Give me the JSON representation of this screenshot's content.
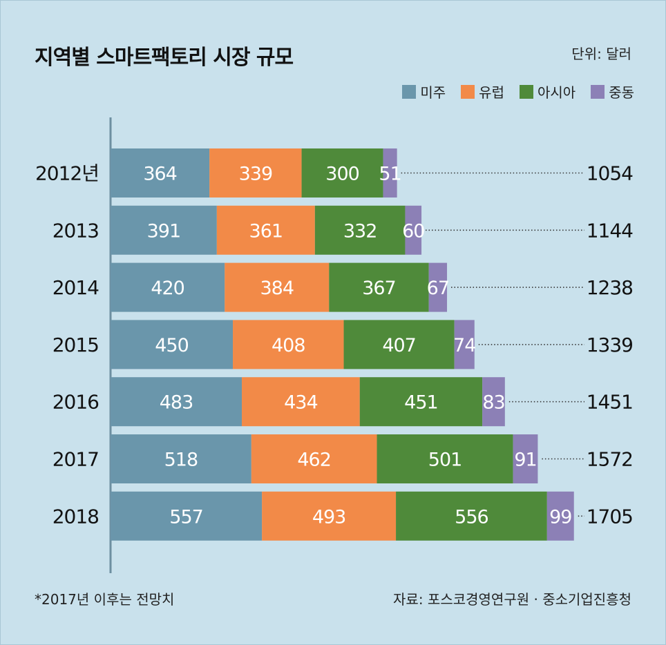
{
  "header": {
    "title": "지역별 스마트팩토리 시장 규모",
    "unit": "단위: 달러"
  },
  "footer": {
    "note": "*2017년 이후는 전망치",
    "source": "자료: 포스코경영연구원 · 중소기업진흥청"
  },
  "chart_data": {
    "type": "bar",
    "orientation": "horizontal",
    "stacked": true,
    "title": "지역별 스마트팩토리 시장 규모",
    "unit": "단위: 달러",
    "categories": [
      "2012년",
      "2013",
      "2014",
      "2015",
      "2016",
      "2017",
      "2018"
    ],
    "series": [
      {
        "name": "미주",
        "color": "#6a96ab",
        "values": [
          364,
          391,
          420,
          450,
          483,
          518,
          557
        ]
      },
      {
        "name": "유럽",
        "color": "#f28a48",
        "values": [
          339,
          361,
          384,
          408,
          434,
          462,
          493
        ]
      },
      {
        "name": "아시아",
        "color": "#4f8a3a",
        "values": [
          300,
          332,
          367,
          407,
          451,
          501,
          556
        ]
      },
      {
        "name": "중동",
        "color": "#8c80b6",
        "values": [
          51,
          60,
          67,
          74,
          83,
          91,
          99
        ]
      }
    ],
    "totals": [
      1054,
      1144,
      1238,
      1339,
      1451,
      1572,
      1705
    ],
    "legend_position": "top-right",
    "grid": false
  }
}
